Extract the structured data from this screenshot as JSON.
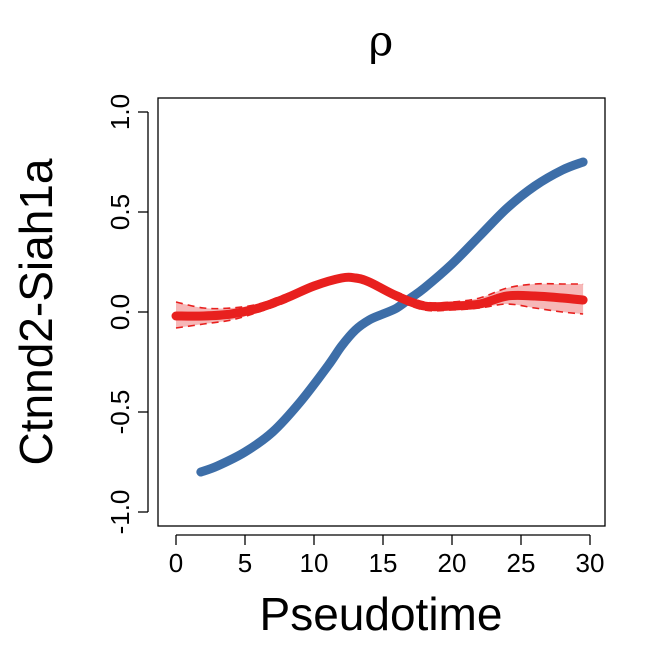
{
  "chart_data": {
    "type": "line",
    "title": "ρ",
    "xlabel": "Pseudotime",
    "ylabel": "Ctnnd2-Siah1a",
    "xlim": [
      0,
      30
    ],
    "ylim": [
      -1.0,
      1.0
    ],
    "xticks": [
      "0",
      "5",
      "10",
      "15",
      "20",
      "25",
      "30"
    ],
    "yticks": [
      "-1.0",
      "-0.5",
      "0.0",
      "0.5",
      "1.0"
    ],
    "grid": false,
    "legend": "none",
    "series": [
      {
        "color": "#3d6ea8",
        "x": [
          1.8,
          3,
          5,
          7,
          9,
          11,
          12,
          13,
          14,
          15,
          16,
          17,
          18,
          20,
          22,
          24,
          26,
          28,
          29.5
        ],
        "y": [
          -0.8,
          -0.77,
          -0.7,
          -0.6,
          -0.45,
          -0.27,
          -0.17,
          -0.09,
          -0.04,
          -0.01,
          0.02,
          0.07,
          0.12,
          0.24,
          0.38,
          0.52,
          0.63,
          0.71,
          0.75
        ],
        "band": false
      },
      {
        "color": "#e8201e",
        "band_color": "#f4a6a6",
        "x": [
          0,
          2,
          4,
          6,
          8,
          10,
          12,
          13,
          14,
          16,
          18,
          20,
          22,
          24,
          26,
          28,
          29.5
        ],
        "y": [
          -0.02,
          -0.02,
          -0.01,
          0.02,
          0.07,
          0.13,
          0.17,
          0.17,
          0.15,
          0.08,
          0.03,
          0.03,
          0.04,
          0.08,
          0.08,
          0.07,
          0.06
        ],
        "lower": [
          -0.08,
          -0.06,
          -0.04,
          0.0,
          0.05,
          0.12,
          0.16,
          0.16,
          0.14,
          0.06,
          0.01,
          0.01,
          0.02,
          0.04,
          0.02,
          0.0,
          -0.01
        ],
        "upper": [
          0.05,
          0.02,
          0.02,
          0.04,
          0.09,
          0.14,
          0.18,
          0.18,
          0.16,
          0.1,
          0.05,
          0.05,
          0.07,
          0.12,
          0.14,
          0.14,
          0.14
        ],
        "band": true
      }
    ]
  }
}
